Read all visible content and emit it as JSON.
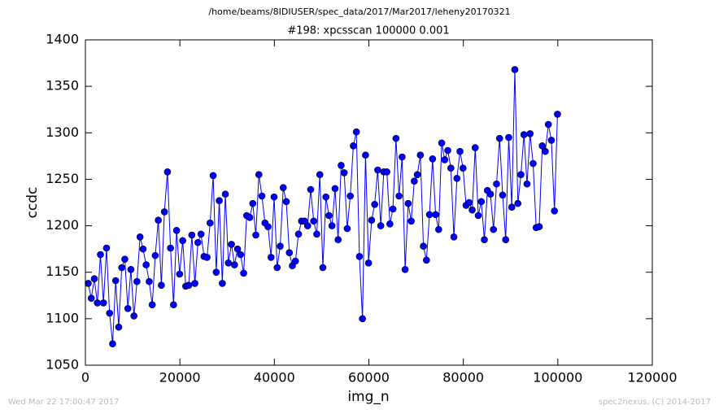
{
  "chart_data": {
    "type": "line",
    "title": "/home/beams/8IDIUSER/spec_data/2017/Mar2017/leheny20170321",
    "subtitle": "#198: xpcsscan 100000 0.001",
    "x_label": "img_n",
    "y_label": "ccdc",
    "footer_left": "Wed Mar 22 17:00:47 2017",
    "footer_right": "spec2nexus, (C) 2014-2017",
    "color": "#0000ff",
    "marker": true,
    "x": [
      600,
      1245,
      1890,
      2535,
      3180,
      3825,
      4470,
      5115,
      5760,
      6405,
      7050,
      7695,
      8340,
      8985,
      9630,
      10275,
      10920,
      11565,
      12210,
      12855,
      13500,
      14145,
      14790,
      15435,
      16080,
      16725,
      17370,
      18015,
      18660,
      19305,
      19950,
      20595,
      21240,
      21885,
      22530,
      23175,
      23820,
      24465,
      25110,
      25755,
      26400,
      27045,
      27690,
      28335,
      28980,
      29625,
      30270,
      30915,
      31560,
      32205,
      32850,
      33495,
      34140,
      34785,
      35430,
      36075,
      36720,
      37365,
      38010,
      38655,
      39300,
      39945,
      40590,
      41235,
      41880,
      42525,
      43170,
      43815,
      44460,
      45105,
      45750,
      46395,
      47040,
      47685,
      48330,
      48975,
      49620,
      50265,
      50910,
      51555,
      52200,
      52845,
      53490,
      54135,
      54780,
      55425,
      56070,
      56715,
      57360,
      58005,
      58650,
      59295,
      59940,
      60585,
      61230,
      61875,
      62520,
      63165,
      63810,
      64455,
      65100,
      65745,
      66390,
      67035,
      67680,
      68325,
      68970,
      69615,
      70260,
      70905,
      71550,
      72195,
      72840,
      73485,
      74130,
      74775,
      75420,
      76065,
      76710,
      77355,
      78000,
      78645,
      79290,
      79935,
      80580,
      81225,
      81870,
      82515,
      83160,
      83805,
      84450,
      85095,
      85740,
      86385,
      87030,
      87675,
      88320,
      88965,
      89610,
      90255,
      90900,
      91545,
      92190,
      92835,
      93480,
      94125,
      94770,
      95415,
      96060,
      96705,
      97350,
      97995,
      98640,
      99285,
      99930
    ],
    "values": [
      1138,
      1122,
      1143,
      1117,
      1169,
      1117,
      1176,
      1106,
      1073,
      1141,
      1091,
      1155,
      1164,
      1111,
      1153,
      1103,
      1140,
      1188,
      1175,
      1158,
      1140,
      1115,
      1168,
      1206,
      1136,
      1215,
      1258,
      1176,
      1115,
      1195,
      1148,
      1184,
      1135,
      1136,
      1190,
      1138,
      1182,
      1191,
      1167,
      1166,
      1203,
      1254,
      1150,
      1227,
      1138,
      1234,
      1160,
      1180,
      1158,
      1175,
      1169,
      1149,
      1211,
      1209,
      1224,
      1190,
      1255,
      1232,
      1203,
      1199,
      1166,
      1231,
      1155,
      1178,
      1241,
      1226,
      1171,
      1157,
      1162,
      1191,
      1205,
      1205,
      1200,
      1239,
      1205,
      1191,
      1255,
      1155,
      1231,
      1211,
      1200,
      1240,
      1185,
      1265,
      1257,
      1197,
      1232,
      1286,
      1301,
      1167,
      1100,
      1276,
      1160,
      1206,
      1223,
      1260,
      1200,
      1258,
      1258,
      1202,
      1218,
      1294,
      1232,
      1274,
      1153,
      1224,
      1205,
      1248,
      1255,
      1276,
      1178,
      1163,
      1212,
      1272,
      1212,
      1196,
      1289,
      1271,
      1281,
      1262,
      1188,
      1251,
      1280,
      1262,
      1222,
      1225,
      1217,
      1284,
      1211,
      1226,
      1185,
      1238,
      1234,
      1196,
      1245,
      1294,
      1233,
      1185,
      1295,
      1220,
      1368,
      1224,
      1255,
      1298,
      1245,
      1299,
      1267,
      1198,
      1199,
      1286,
      1280,
      1309,
      1292,
      1216,
      1320
    ],
    "xlim": [
      0,
      120000
    ],
    "xticks": [
      0,
      20000,
      40000,
      60000,
      80000,
      100000,
      120000
    ],
    "ylim": [
      1050,
      1400
    ],
    "yticks": [
      1050,
      1100,
      1150,
      1200,
      1250,
      1300,
      1350,
      1400
    ],
    "grid": false
  }
}
